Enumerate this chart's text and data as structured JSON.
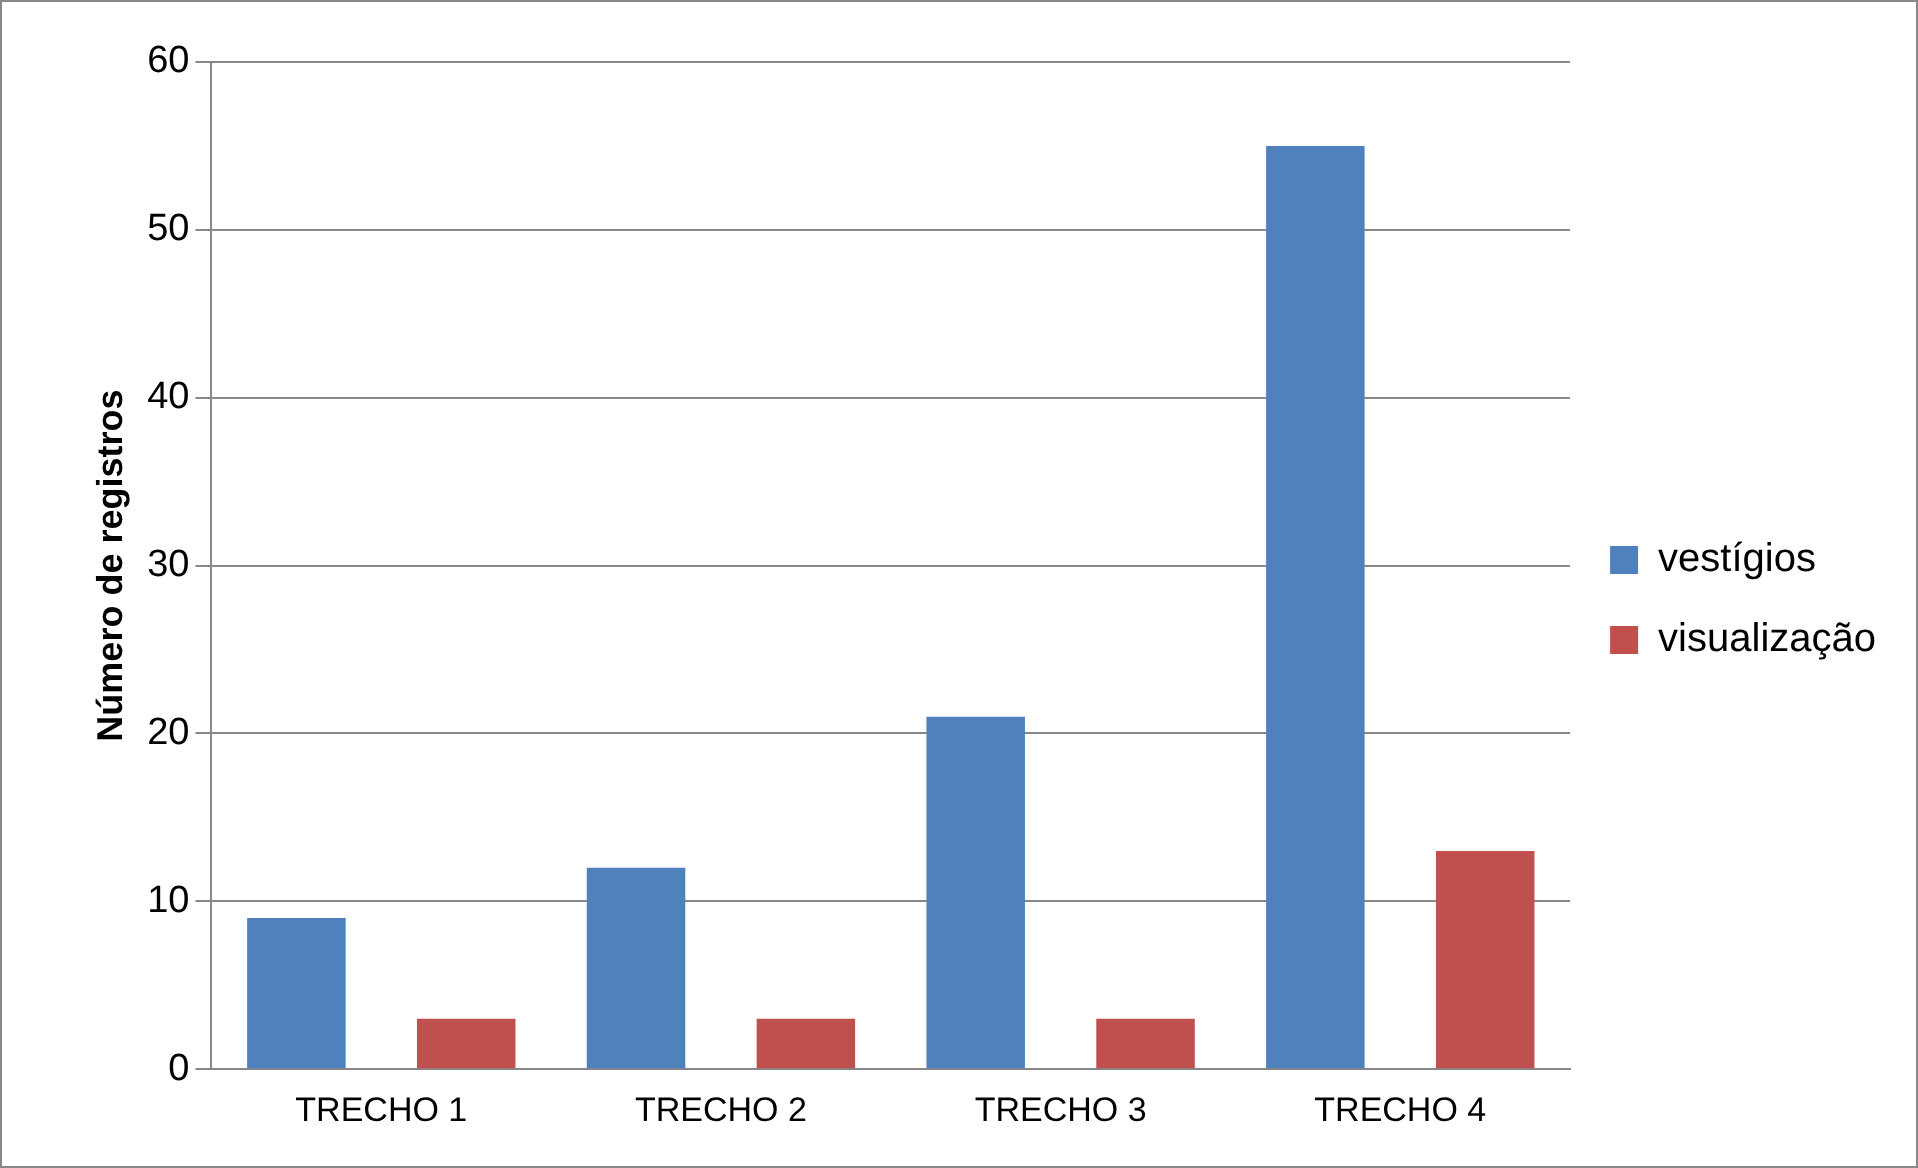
{
  "chart_data": {
    "type": "bar",
    "ylabel": "Número de registros",
    "categories": [
      "TRECHO 1",
      "TRECHO 2",
      "TRECHO 3",
      "TRECHO 4"
    ],
    "series": [
      {
        "name": "vestígios",
        "color": "#4f81bd",
        "values": [
          9,
          12,
          21,
          55
        ]
      },
      {
        "name": "visualização",
        "color": "#c0504d",
        "values": [
          3,
          3,
          3,
          13
        ]
      }
    ],
    "ylim": [
      0,
      60
    ],
    "yticks": [
      0,
      10,
      20,
      30,
      40,
      50,
      60
    ],
    "grid": "y",
    "legend": "right"
  }
}
